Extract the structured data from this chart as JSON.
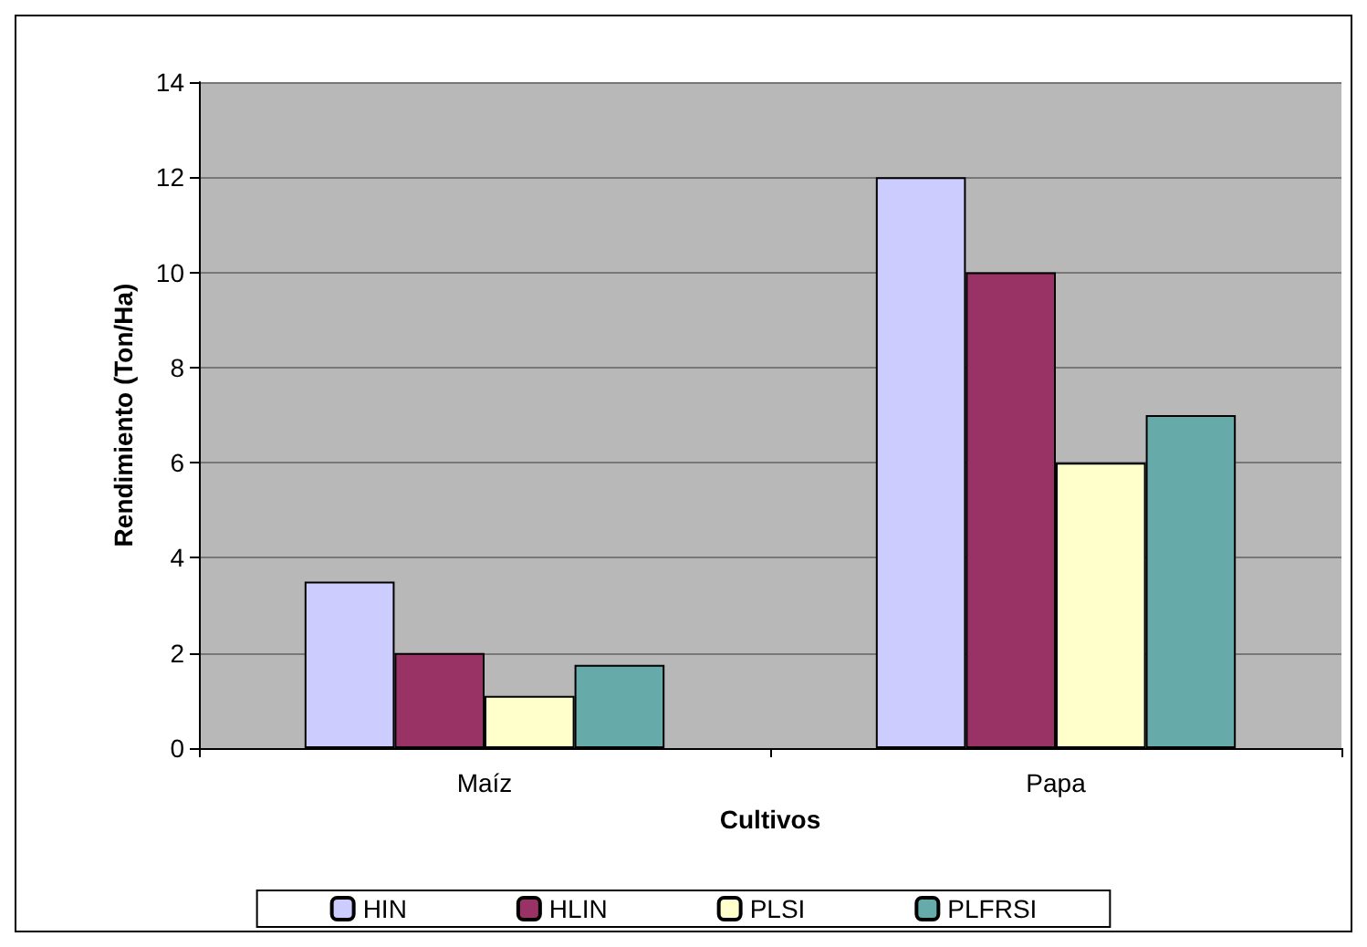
{
  "chart_data": {
    "type": "bar",
    "xlabel": "Cultivos",
    "ylabel": "Rendimiento (Ton/Ha)",
    "categories": [
      "Maíz",
      "Papa"
    ],
    "series": [
      {
        "name": "HIN",
        "color": "#ccccff",
        "values": [
          3.5,
          12
        ]
      },
      {
        "name": "HLIN",
        "color": "#993366",
        "values": [
          2,
          10
        ]
      },
      {
        "name": "PLSI",
        "color": "#ffffcc",
        "values": [
          1.1,
          6
        ]
      },
      {
        "name": "PLFRSI",
        "color": "#66aaaa",
        "values": [
          1.75,
          7
        ]
      }
    ],
    "ylim": [
      0,
      14
    ],
    "yticks": [
      0,
      2,
      4,
      6,
      8,
      10,
      12,
      14
    ],
    "grid": "y",
    "legend": "bottom"
  }
}
